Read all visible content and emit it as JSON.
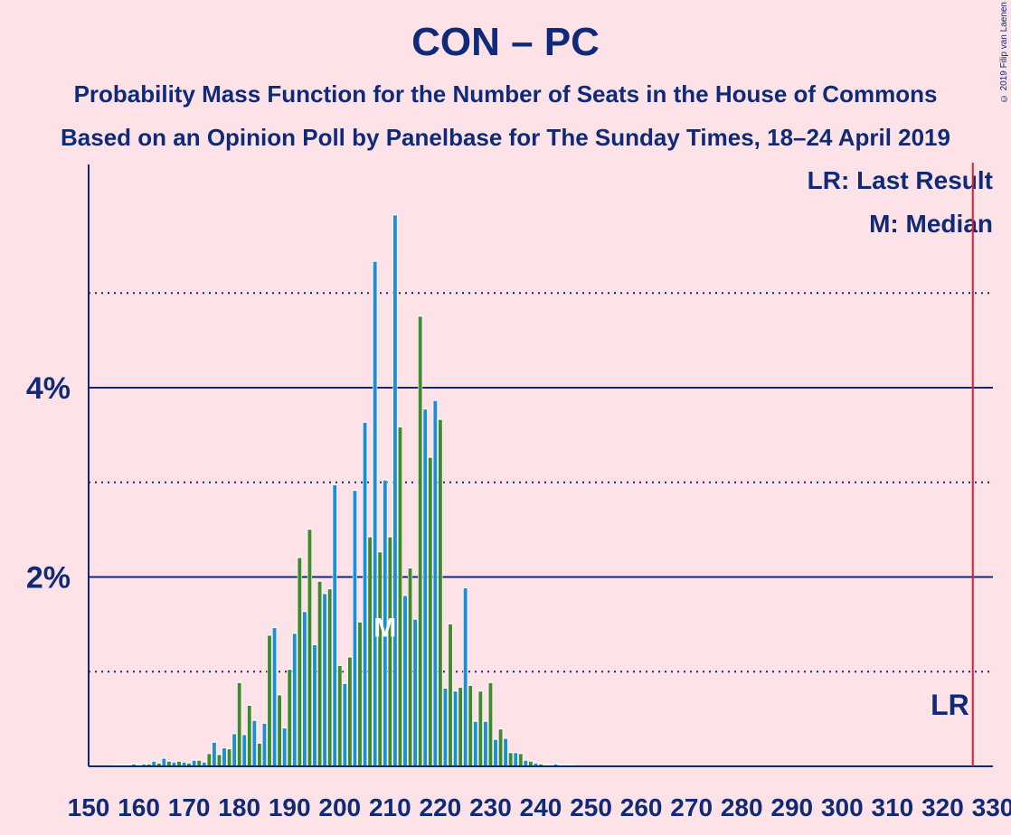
{
  "copyright": "© 2019 Filip van Laenen",
  "legend": {
    "lr": "LR: Last Result",
    "m": "M: Median"
  },
  "chart_data": {
    "type": "bar",
    "title": "CON – PC",
    "subtitle": "Probability Mass Function for the Number of Seats in the House of Commons",
    "subtitle2": "Based on an Opinion Poll by Panelbase for The Sunday Times, 18–24 April 2019",
    "xlim": [
      150,
      330
    ],
    "ylim": [
      0,
      6.3
    ],
    "x_ticks": [
      150,
      160,
      170,
      180,
      190,
      200,
      210,
      220,
      230,
      240,
      250,
      260,
      270,
      280,
      290,
      300,
      310,
      320,
      330
    ],
    "y_ticks": [
      {
        "value": 2,
        "label": "2%"
      },
      {
        "value": 4,
        "label": "4%"
      }
    ],
    "y_dotted_lines": [
      1,
      3,
      5
    ],
    "last_result": {
      "x": 326,
      "label": "LR"
    },
    "median": {
      "x": 209,
      "label": "M"
    },
    "colors": {
      "green": "#3E8A2D",
      "blue": "#1B8FD6",
      "red": "#E02030",
      "axis": "#0E2A78"
    },
    "series": [
      {
        "values": [
          {
            "x": 155,
            "y": 0.01
          },
          {
            "x": 156,
            "y": 0.01
          },
          {
            "x": 157,
            "y": 0.01
          },
          {
            "x": 158,
            "y": 0.01
          },
          {
            "x": 159,
            "y": 0.02
          },
          {
            "x": 160,
            "y": 0.01
          },
          {
            "x": 161,
            "y": 0.02
          },
          {
            "x": 162,
            "y": 0.02
          },
          {
            "x": 163,
            "y": 0.05
          },
          {
            "x": 164,
            "y": 0.03
          },
          {
            "x": 165,
            "y": 0.08
          },
          {
            "x": 166,
            "y": 0.05
          },
          {
            "x": 167,
            "y": 0.04
          },
          {
            "x": 168,
            "y": 0.05
          },
          {
            "x": 169,
            "y": 0.04
          },
          {
            "x": 170,
            "y": 0.03
          },
          {
            "x": 171,
            "y": 0.06
          },
          {
            "x": 172,
            "y": 0.06
          },
          {
            "x": 173,
            "y": 0.04
          },
          {
            "x": 174,
            "y": 0.13
          },
          {
            "x": 175,
            "y": 0.25
          },
          {
            "x": 176,
            "y": 0.12
          },
          {
            "x": 177,
            "y": 0.19
          },
          {
            "x": 178,
            "y": 0.18
          },
          {
            "x": 179,
            "y": 0.34
          },
          {
            "x": 180,
            "y": 0.88
          },
          {
            "x": 181,
            "y": 0.33
          },
          {
            "x": 182,
            "y": 0.64
          },
          {
            "x": 183,
            "y": 0.48
          },
          {
            "x": 184,
            "y": 0.24
          },
          {
            "x": 185,
            "y": 0.45
          },
          {
            "x": 186,
            "y": 1.38
          },
          {
            "x": 187,
            "y": 1.46
          },
          {
            "x": 188,
            "y": 0.75
          },
          {
            "x": 189,
            "y": 0.4
          },
          {
            "x": 190,
            "y": 1.02
          },
          {
            "x": 191,
            "y": 1.4
          },
          {
            "x": 192,
            "y": 2.2
          },
          {
            "x": 193,
            "y": 1.63
          },
          {
            "x": 194,
            "y": 2.5
          },
          {
            "x": 195,
            "y": 1.28
          },
          {
            "x": 196,
            "y": 1.95
          },
          {
            "x": 197,
            "y": 1.82
          },
          {
            "x": 198,
            "y": 1.87
          },
          {
            "x": 199,
            "y": 2.97
          },
          {
            "x": 200,
            "y": 1.06
          },
          {
            "x": 201,
            "y": 0.87
          },
          {
            "x": 202,
            "y": 1.15
          },
          {
            "x": 203,
            "y": 2.91
          },
          {
            "x": 204,
            "y": 1.52
          },
          {
            "x": 205,
            "y": 3.63
          },
          {
            "x": 206,
            "y": 2.42
          },
          {
            "x": 207,
            "y": 5.33
          },
          {
            "x": 208,
            "y": 2.26
          },
          {
            "x": 209,
            "y": 3.02
          },
          {
            "x": 210,
            "y": 2.42
          },
          {
            "x": 211,
            "y": 5.82
          },
          {
            "x": 212,
            "y": 3.58
          },
          {
            "x": 213,
            "y": 1.8
          },
          {
            "x": 214,
            "y": 2.09
          },
          {
            "x": 215,
            "y": 1.55
          },
          {
            "x": 216,
            "y": 4.75
          },
          {
            "x": 217,
            "y": 3.77
          },
          {
            "x": 218,
            "y": 3.26
          },
          {
            "x": 219,
            "y": 3.86
          },
          {
            "x": 220,
            "y": 3.66
          },
          {
            "x": 221,
            "y": 0.82
          },
          {
            "x": 222,
            "y": 1.5
          },
          {
            "x": 223,
            "y": 0.79
          },
          {
            "x": 224,
            "y": 0.83
          },
          {
            "x": 225,
            "y": 1.88
          },
          {
            "x": 226,
            "y": 0.85
          },
          {
            "x": 227,
            "y": 0.47
          },
          {
            "x": 228,
            "y": 0.79
          },
          {
            "x": 229,
            "y": 0.47
          },
          {
            "x": 230,
            "y": 0.88
          },
          {
            "x": 231,
            "y": 0.28
          },
          {
            "x": 232,
            "y": 0.39
          },
          {
            "x": 233,
            "y": 0.29
          },
          {
            "x": 234,
            "y": 0.14
          },
          {
            "x": 235,
            "y": 0.14
          },
          {
            "x": 236,
            "y": 0.13
          },
          {
            "x": 237,
            "y": 0.06
          },
          {
            "x": 238,
            "y": 0.05
          },
          {
            "x": 239,
            "y": 0.03
          },
          {
            "x": 240,
            "y": 0.02
          },
          {
            "x": 241,
            "y": 0.01
          },
          {
            "x": 242,
            "y": 0.01
          },
          {
            "x": 243,
            "y": 0.02
          },
          {
            "x": 244,
            "y": 0.01
          },
          {
            "x": 245,
            "y": 0.01
          },
          {
            "x": 246,
            "y": 0.01
          }
        ]
      }
    ]
  }
}
